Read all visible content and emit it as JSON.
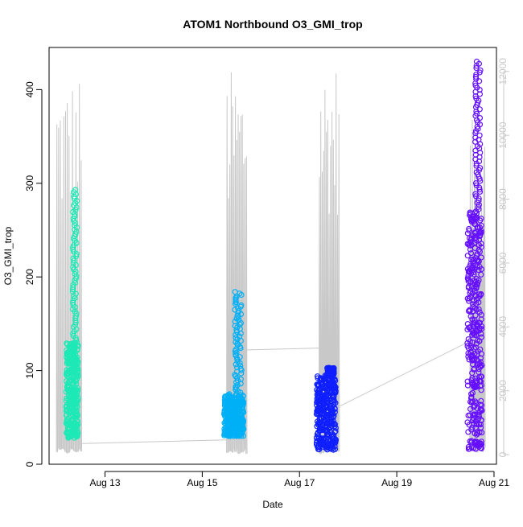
{
  "chart_data": {
    "type": "scatter",
    "title": "ATOM1 Northbound O3_GMI_trop",
    "xlabel": "Date",
    "ylabel": "O3_GMI_trop",
    "y2label": "",
    "x_ticks": [
      "Aug 13",
      "Aug 15",
      "Aug 17",
      "Aug 19",
      "Aug 21"
    ],
    "x_tick_days": [
      13,
      15,
      17,
      19,
      21
    ],
    "xlim_days": [
      11.85,
      21.05
    ],
    "ylim": [
      0,
      445
    ],
    "y_ticks": [
      0,
      100,
      200,
      300,
      400
    ],
    "y2lim": [
      -300,
      12750
    ],
    "y2_ticks": [
      0,
      2000,
      4000,
      6000,
      8000,
      10000,
      12000
    ],
    "grid": false,
    "legend": "none",
    "colors": {
      "series1": "#1de9b6",
      "series2": "#00b0f6",
      "series3": "#0f1fff",
      "series4": "#6610ff",
      "altitude": "#c8c8c8"
    },
    "series": [
      {
        "values_note": "",
        "day_range": [
          12.2,
          12.45
        ],
        "o3_range": [
          28,
          293
        ],
        "dense_range": [
          30,
          130
        ]
      },
      {
        "day_range": [
          15.45,
          15.85
        ],
        "o3_range": [
          30,
          184
        ],
        "dense_range": [
          30,
          75
        ]
      },
      {
        "day_range": [
          17.35,
          17.75
        ],
        "o3_range": [
          15,
          103
        ],
        "dense_range": [
          18,
          95
        ]
      },
      {
        "day_range": [
          20.45,
          20.75
        ],
        "o3_range": [
          15,
          430
        ],
        "dense_range": [
          20,
          270
        ]
      }
    ],
    "altitude_spikes": [
      {
        "day": 12.0,
        "top": 12000
      },
      {
        "day": 15.5,
        "top": 12100
      },
      {
        "day": 17.4,
        "top": 12400
      },
      {
        "day": 20.5,
        "top": 10500
      }
    ]
  }
}
